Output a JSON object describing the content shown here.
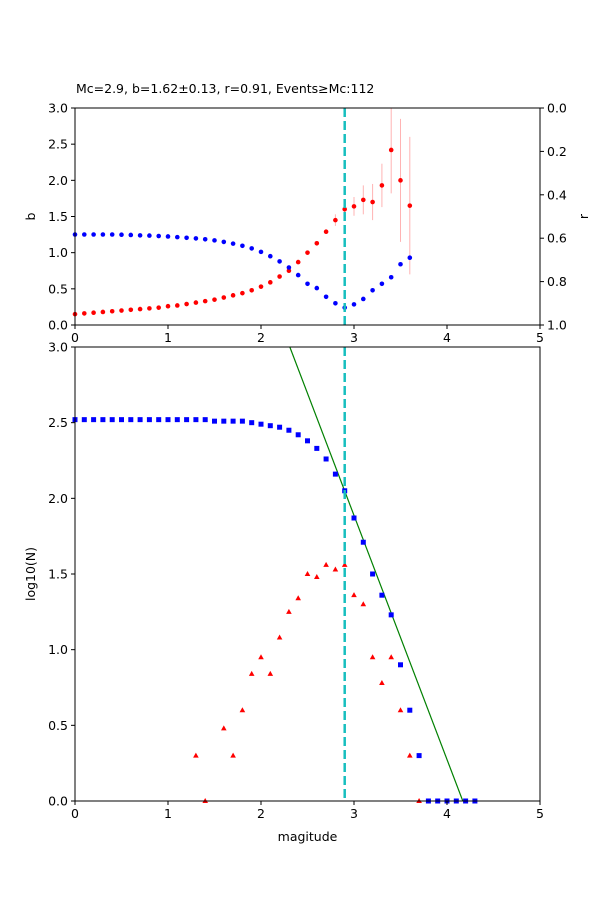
{
  "chart_data": [
    {
      "type": "scatter",
      "title": "Mc=2.9, b=1.62±0.13, r=0.91, Events≥Mc:112",
      "ylabel": "b",
      "y2label": "r",
      "xlim": [
        0,
        5
      ],
      "ylim": [
        0,
        3.0
      ],
      "y2lim": [
        1.0,
        0.0
      ],
      "y2_inverted": true,
      "xticks": [
        "0",
        "1",
        "2",
        "3",
        "4",
        "5"
      ],
      "yticks": [
        "0.0",
        "0.5",
        "1.0",
        "1.5",
        "2.0",
        "2.5",
        "3.0"
      ],
      "y2ticks": [
        "0.0",
        "0.2",
        "0.4",
        "0.6",
        "0.8",
        "1.0"
      ],
      "vline": {
        "x": 2.9,
        "color": "#17bebe",
        "style": "dashed"
      },
      "series": [
        {
          "axis": "left",
          "color": "#ff0000",
          "marker": "circle",
          "x": [
            0.0,
            0.1,
            0.2,
            0.3,
            0.4,
            0.5,
            0.6,
            0.7,
            0.8,
            0.9,
            1.0,
            1.1,
            1.2,
            1.3,
            1.4,
            1.5,
            1.6,
            1.7,
            1.8,
            1.9,
            2.0,
            2.1,
            2.2,
            2.3,
            2.4,
            2.5,
            2.6,
            2.7,
            2.8,
            2.9,
            3.0,
            3.1,
            3.2,
            3.3,
            3.4,
            3.5,
            3.6
          ],
          "y": [
            0.15,
            0.16,
            0.17,
            0.18,
            0.19,
            0.2,
            0.21,
            0.22,
            0.23,
            0.24,
            0.26,
            0.27,
            0.29,
            0.31,
            0.33,
            0.35,
            0.38,
            0.41,
            0.44,
            0.48,
            0.53,
            0.59,
            0.67,
            0.75,
            0.87,
            1.0,
            1.13,
            1.29,
            1.45,
            1.6,
            1.64,
            1.73,
            1.7,
            1.93,
            2.42,
            2.0,
            1.65
          ],
          "err": [
            0,
            0,
            0,
            0,
            0,
            0,
            0,
            0,
            0,
            0,
            0,
            0,
            0,
            0,
            0,
            0,
            0,
            0,
            0,
            0,
            0,
            0,
            0,
            0,
            0,
            0,
            0,
            0,
            0.08,
            0.12,
            0.13,
            0.2,
            0.25,
            0.3,
            0.6,
            0.85,
            0.95
          ]
        },
        {
          "axis": "right",
          "color": "#0000ff",
          "marker": "circle",
          "x": [
            0.0,
            0.1,
            0.2,
            0.3,
            0.4,
            0.5,
            0.6,
            0.7,
            0.8,
            0.9,
            1.0,
            1.1,
            1.2,
            1.3,
            1.4,
            1.5,
            1.6,
            1.7,
            1.8,
            1.9,
            2.0,
            2.1,
            2.2,
            2.3,
            2.4,
            2.5,
            2.6,
            2.7,
            2.8,
            2.9,
            3.0,
            3.1,
            3.2,
            3.3,
            3.4,
            3.5,
            3.6
          ],
          "y": [
            0.583,
            0.583,
            0.583,
            0.583,
            0.583,
            0.584,
            0.585,
            0.587,
            0.588,
            0.59,
            0.592,
            0.595,
            0.598,
            0.601,
            0.605,
            0.61,
            0.617,
            0.625,
            0.635,
            0.647,
            0.663,
            0.683,
            0.707,
            0.735,
            0.77,
            0.81,
            0.83,
            0.87,
            0.9,
            0.92,
            0.905,
            0.88,
            0.84,
            0.81,
            0.78,
            0.72,
            0.69
          ]
        }
      ]
    },
    {
      "type": "scatter",
      "xlabel": "magitude",
      "ylabel": "log10(N)",
      "xlim": [
        0,
        5
      ],
      "ylim": [
        0,
        3.0
      ],
      "xticks": [
        "0",
        "1",
        "2",
        "3",
        "4",
        "5"
      ],
      "yticks": [
        "0.0",
        "0.5",
        "1.0",
        "1.5",
        "2.0",
        "2.5",
        "3.0"
      ],
      "vline": {
        "x": 2.9,
        "color": "#17bebe",
        "style": "dashed"
      },
      "fit_line": {
        "color": "#008000",
        "x": [
          2.31,
          4.17
        ],
        "y": [
          3.0,
          0.0
        ]
      },
      "series": [
        {
          "color": "#0000ff",
          "marker": "square",
          "x": [
            0.0,
            0.1,
            0.2,
            0.3,
            0.4,
            0.5,
            0.6,
            0.7,
            0.8,
            0.9,
            1.0,
            1.1,
            1.2,
            1.3,
            1.4,
            1.5,
            1.6,
            1.7,
            1.8,
            1.9,
            2.0,
            2.1,
            2.2,
            2.3,
            2.4,
            2.5,
            2.6,
            2.7,
            2.8,
            2.9,
            3.0,
            3.1,
            3.2,
            3.3,
            3.4,
            3.5,
            3.6,
            3.7,
            3.8,
            3.9,
            4.0,
            4.1,
            4.2,
            4.3
          ],
          "y": [
            2.52,
            2.52,
            2.52,
            2.52,
            2.52,
            2.52,
            2.52,
            2.52,
            2.52,
            2.52,
            2.52,
            2.52,
            2.52,
            2.52,
            2.52,
            2.51,
            2.51,
            2.51,
            2.51,
            2.5,
            2.49,
            2.48,
            2.47,
            2.45,
            2.42,
            2.38,
            2.33,
            2.26,
            2.16,
            2.05,
            1.87,
            1.71,
            1.5,
            1.36,
            1.23,
            0.9,
            0.6,
            0.3,
            0.0,
            0.0,
            0.0,
            0.0,
            0.0,
            0.0
          ]
        },
        {
          "color": "#ff0000",
          "marker": "triangle",
          "x": [
            1.3,
            1.4,
            1.6,
            1.7,
            1.8,
            1.9,
            2.0,
            2.1,
            2.2,
            2.3,
            2.4,
            2.5,
            2.6,
            2.7,
            2.8,
            2.9,
            3.0,
            3.1,
            3.2,
            3.3,
            3.4,
            3.5,
            3.6,
            3.7
          ],
          "y": [
            0.3,
            0.0,
            0.48,
            0.3,
            0.6,
            0.84,
            0.95,
            0.84,
            1.08,
            1.25,
            1.34,
            1.5,
            1.48,
            1.56,
            1.53,
            1.56,
            1.36,
            1.3,
            0.95,
            0.78,
            0.95,
            0.6,
            0.3,
            0.0
          ]
        }
      ]
    }
  ]
}
